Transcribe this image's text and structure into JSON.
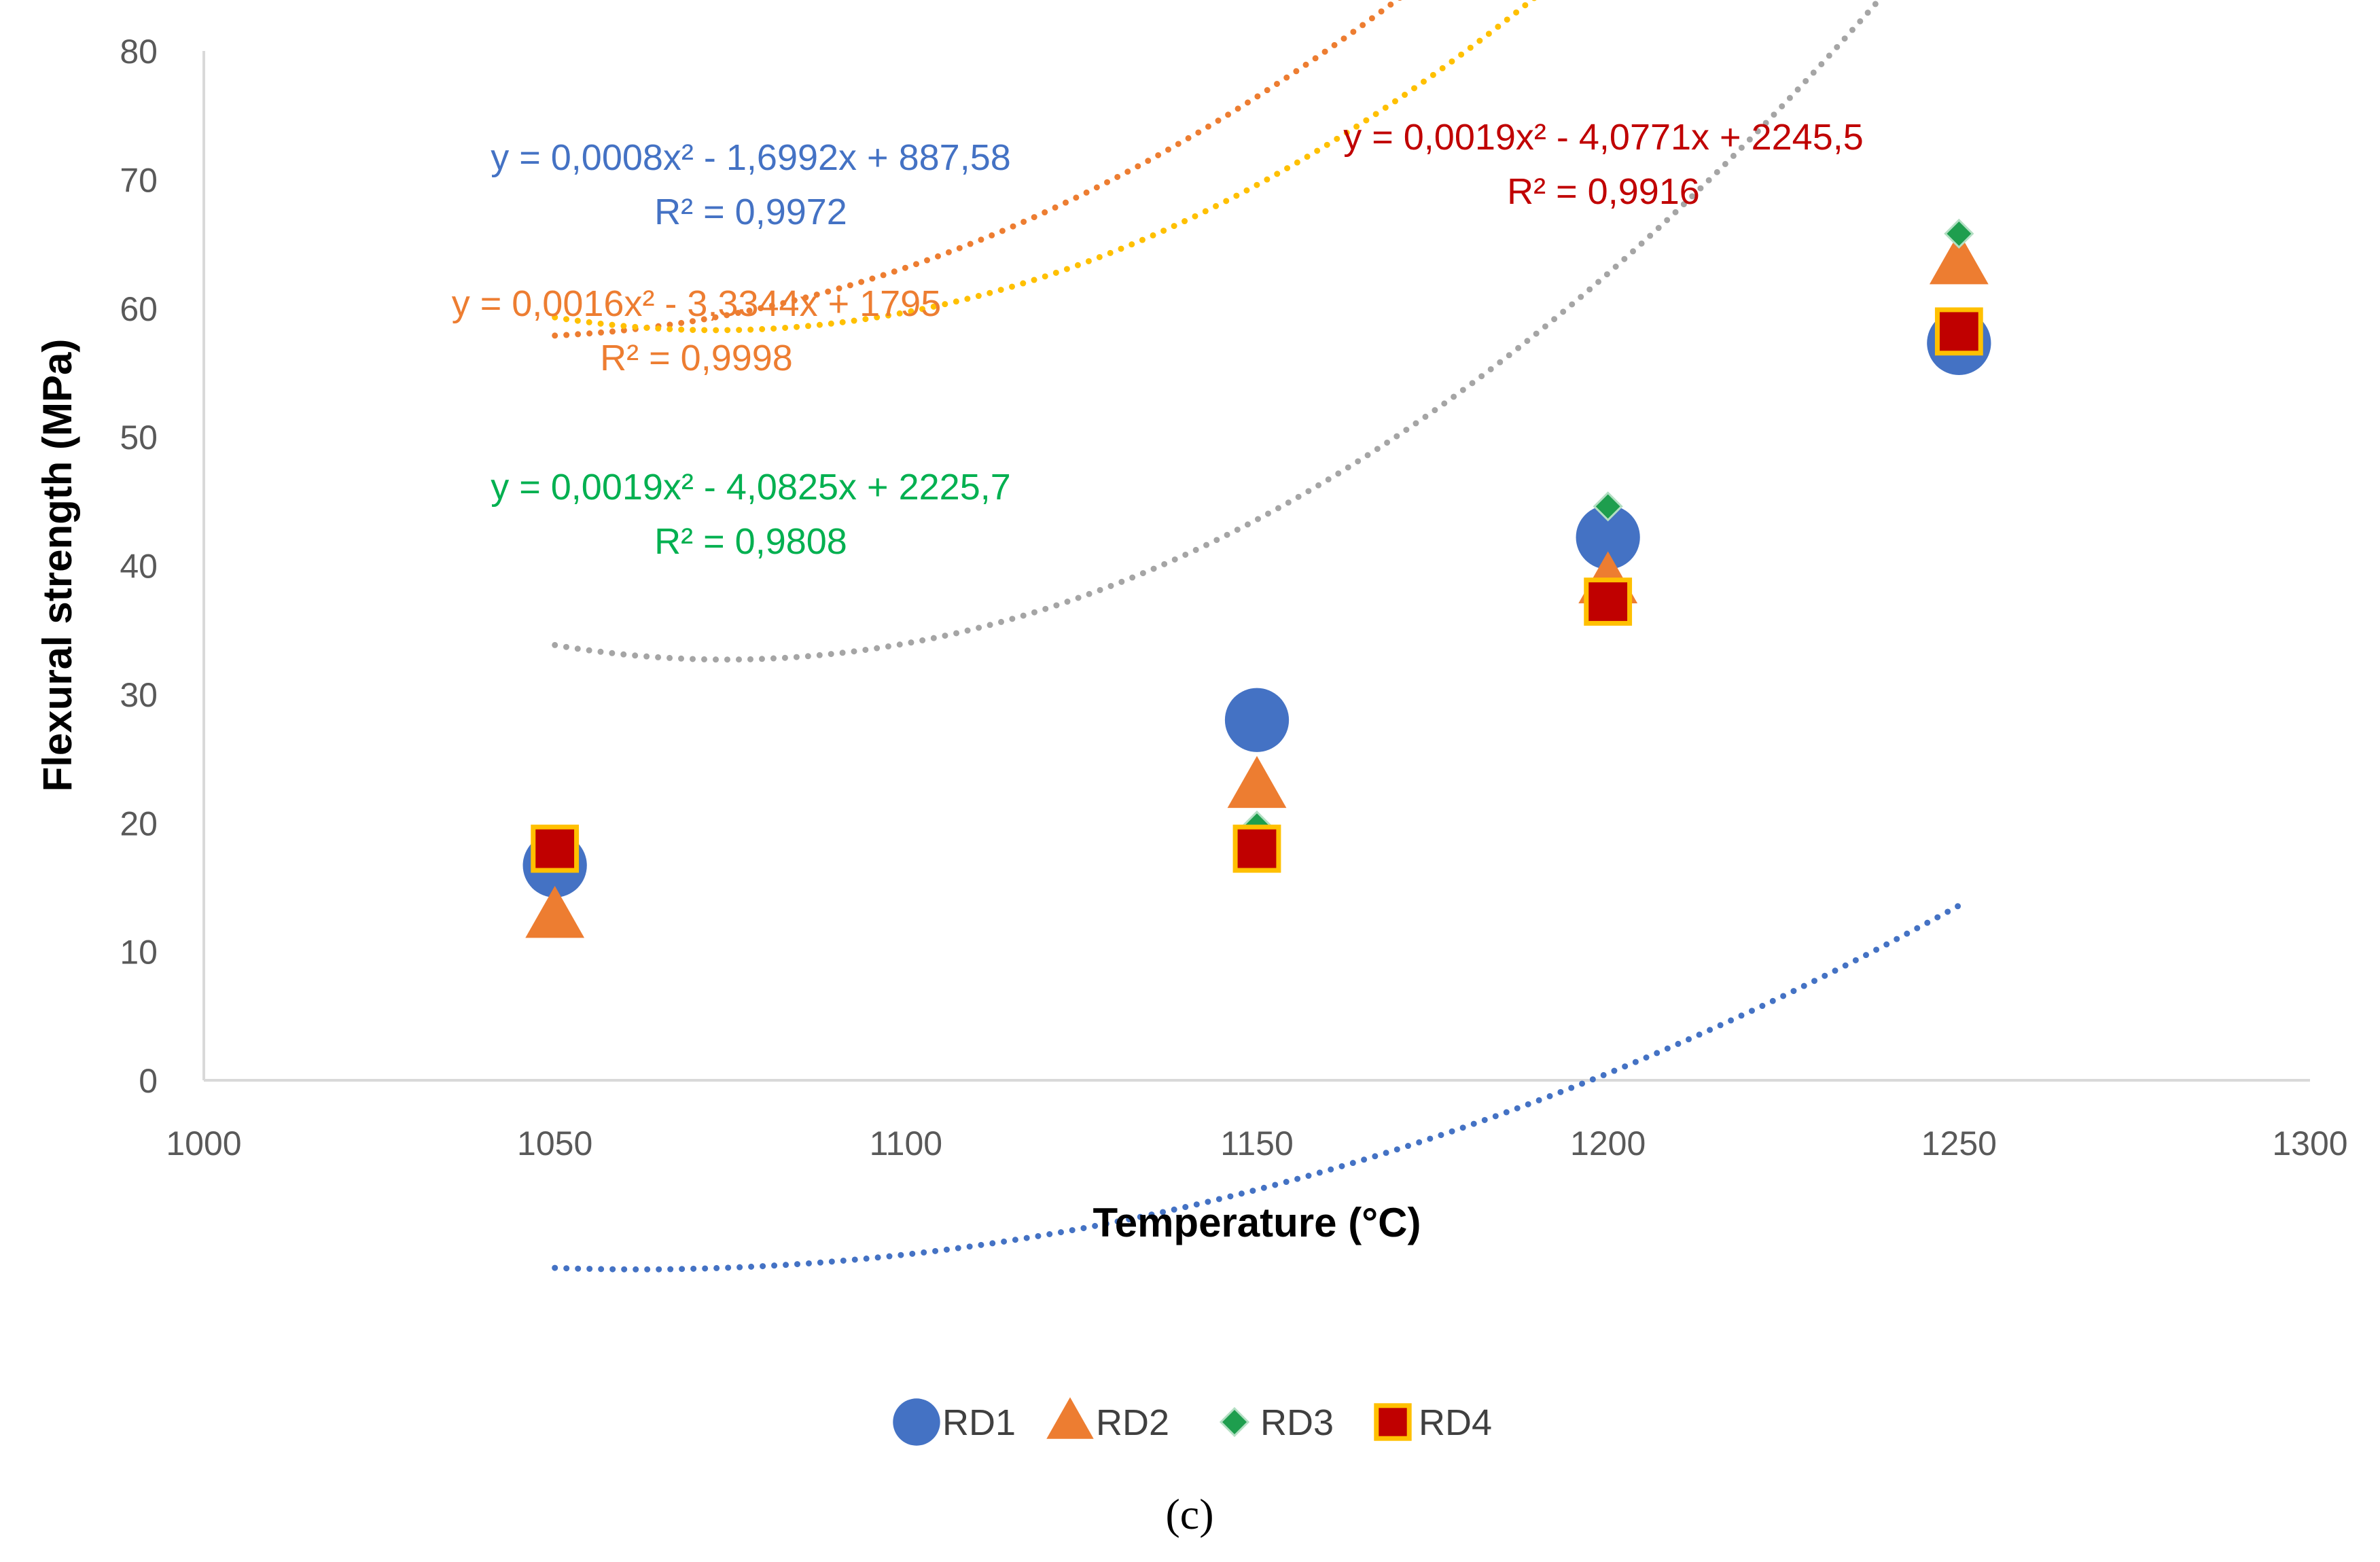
{
  "chart_data": {
    "type": "scatter",
    "title": "",
    "xlabel": "Temperature (°C)",
    "ylabel": "Flexural strength (MPa)",
    "xlim": [
      1000,
      1300
    ],
    "ylim": [
      0,
      80
    ],
    "xticks": [
      1000,
      1050,
      1100,
      1150,
      1200,
      1250,
      1300
    ],
    "yticks": [
      0,
      10,
      20,
      30,
      40,
      50,
      60,
      70,
      80
    ],
    "grid": false,
    "legend_position": "bottom",
    "caption": "(c)",
    "series": [
      {
        "name": "RD1",
        "color": "#4472C4",
        "marker": "circle",
        "x": [
          1050,
          1150,
          1200,
          1250
        ],
        "y": [
          16.7,
          28.0,
          42.2,
          57.3
        ],
        "trendline": {
          "type": "polynomial",
          "order": 2,
          "coeffs": [
            0.0008,
            -1.6992,
            887.58
          ],
          "color": "#4472C4",
          "equation": "y = 0,0008x² - 1,6992x + 887,58",
          "r2": "R² = 0,9972",
          "label_color": "#4472C4"
        }
      },
      {
        "name": "RD2",
        "color": "#ED7D31",
        "marker": "triangle",
        "x": [
          1050,
          1150,
          1200,
          1250
        ],
        "y": [
          12.7,
          22.8,
          38.7,
          63.5
        ],
        "trendline": {
          "type": "polynomial",
          "order": 2,
          "coeffs": [
            0.0016,
            -3.3344,
            1795
          ],
          "color": "#ED7D31",
          "equation": "y = 0,0016x² - 3,3344x + 1795",
          "r2": "R² = 0,9998",
          "label_color": "#ED7D31"
        }
      },
      {
        "name": "RD3",
        "color": "#1E9E4E",
        "marker": "diamond",
        "x": [
          1050,
          1150,
          1200,
          1250
        ],
        "y": [
          17.9,
          19.8,
          44.6,
          65.8
        ],
        "trendline": {
          "type": "polynomial",
          "order": 2,
          "coeffs": [
            0.0019,
            -4.0825,
            2225.7
          ],
          "color": "#A5A5A5",
          "equation": "y = 0,0019x² - 4,0825x + 2225,7",
          "r2": "R² = 0,9808",
          "label_color": "#00B050"
        }
      },
      {
        "name": "RD4",
        "color": "#C00000",
        "marker": "square",
        "x": [
          1050,
          1150,
          1200,
          1250
        ],
        "y": [
          18.0,
          18.0,
          37.2,
          58.2
        ],
        "trendline": {
          "type": "polynomial",
          "order": 2,
          "coeffs": [
            0.0019,
            -4.0771,
            2245.5
          ],
          "color": "#FFC000",
          "equation": "y = 0,0019x² - 4,0771x + 2245,5",
          "r2": "R² = 0,9916",
          "label_color": "#C00000"
        }
      }
    ]
  }
}
